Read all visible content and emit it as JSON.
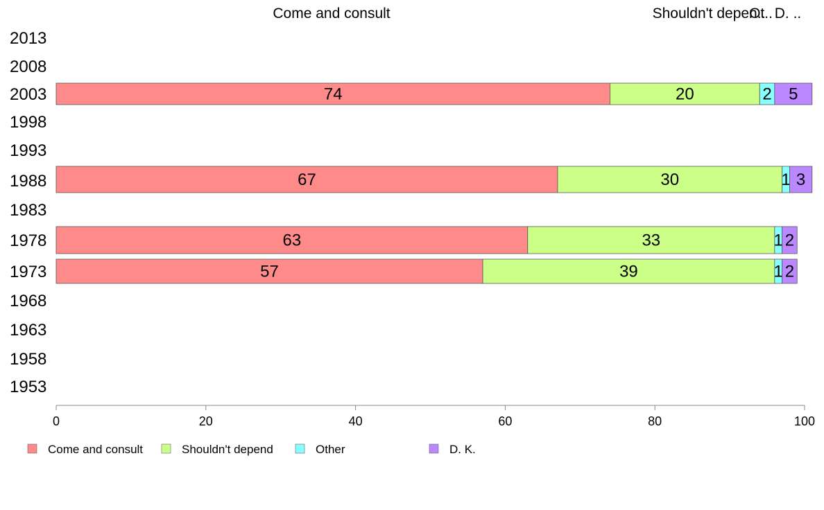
{
  "chart_data": {
    "type": "bar",
    "orientation": "horizontal",
    "stacked": true,
    "categories": [
      "1953",
      "1958",
      "1963",
      "1968",
      "1973",
      "1978",
      "1983",
      "1988",
      "1993",
      "1998",
      "2003",
      "2008",
      "2013"
    ],
    "series": [
      {
        "name": "Come and consult",
        "color": "#FF8A8A",
        "values": [
          null,
          null,
          null,
          null,
          57,
          63,
          null,
          67,
          null,
          null,
          74,
          null,
          null
        ]
      },
      {
        "name": "Shouldn't depend",
        "color": "#CCFF88",
        "values": [
          null,
          null,
          null,
          null,
          39,
          33,
          null,
          30,
          null,
          null,
          20,
          null,
          null
        ]
      },
      {
        "name": "Other",
        "color": "#88FFFF",
        "values": [
          null,
          null,
          null,
          null,
          1,
          1,
          null,
          1,
          null,
          null,
          2,
          null,
          null
        ]
      },
      {
        "name": "D. K.",
        "color": "#BB88FF",
        "values": [
          null,
          null,
          null,
          null,
          2,
          2,
          null,
          3,
          null,
          null,
          5,
          null,
          null
        ]
      }
    ],
    "segment_labels": {
      "1973": [
        "57",
        "39",
        "1",
        "2"
      ],
      "1978": [
        "63",
        "33",
        "1",
        "2"
      ],
      "1988": [
        "67",
        "30",
        "1",
        "3"
      ],
      "2003": [
        "74",
        "20",
        "2",
        "5"
      ]
    },
    "top_labels": [
      "Come and consult",
      "Shouldn't depen..",
      "Ot..",
      "D. .."
    ],
    "x_ticks": [
      "0",
      "20",
      "40",
      "60",
      "80",
      "100"
    ],
    "xlim": [
      0,
      100
    ],
    "grid": false,
    "legend_position": "bottom-left"
  }
}
